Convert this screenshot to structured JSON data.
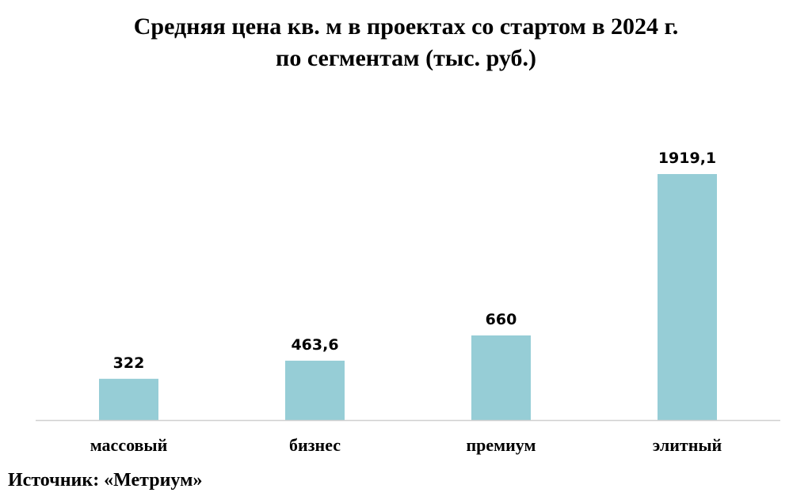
{
  "title_line1": "Средняя цена кв. м в проектах со стартом в 2024 г.",
  "title_line2": "по сегментам (тыс. руб.)",
  "source": "Источник: «Метриум»",
  "colors": {
    "bar": "#96cdd6",
    "axis": "#d0d0d0",
    "text": "#000000"
  },
  "chart_data": {
    "type": "bar",
    "categories": [
      "массовый",
      "бизнес",
      "премиум",
      "элитный"
    ],
    "values": [
      322,
      463.6,
      660,
      1919.1
    ],
    "data_labels": [
      "322",
      "463,6",
      "660",
      "1919,1"
    ],
    "title": "Средняя цена кв. м в проектах со стартом в 2024 г. по сегментам (тыс. руб.)",
    "ylim": [
      0,
      1919.1
    ],
    "grid": false,
    "legend": "none"
  }
}
